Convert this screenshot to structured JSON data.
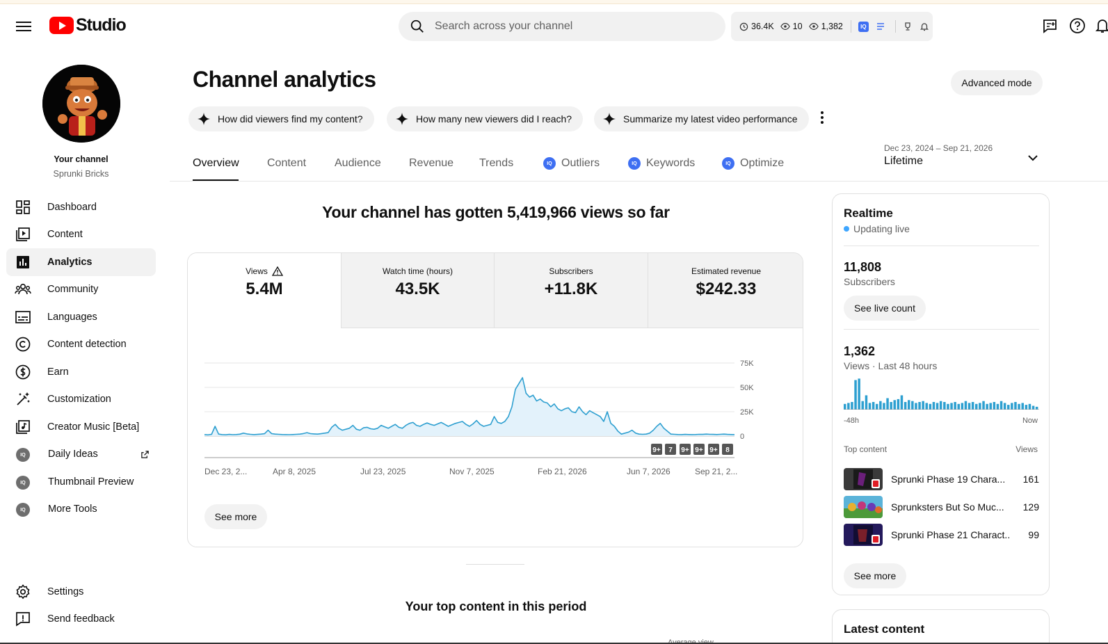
{
  "header": {
    "app_title": "Studio",
    "search_placeholder": "Search across your channel",
    "stat_watch": "36.4K",
    "stat_live": "10",
    "stat_views": "1,382"
  },
  "sidebar": {
    "your_channel_label": "Your channel",
    "channel_name": "Sprunki Bricks",
    "items": [
      {
        "label": "Dashboard",
        "icon": "dashboard-icon"
      },
      {
        "label": "Content",
        "icon": "content-icon"
      },
      {
        "label": "Analytics",
        "icon": "analytics-icon"
      },
      {
        "label": "Community",
        "icon": "community-icon"
      },
      {
        "label": "Languages",
        "icon": "subtitles-icon"
      },
      {
        "label": "Content detection",
        "icon": "copyright-icon"
      },
      {
        "label": "Earn",
        "icon": "dollar-icon"
      },
      {
        "label": "Customization",
        "icon": "magic-wand-icon"
      },
      {
        "label": "Creator Music [Beta]",
        "icon": "music-icon"
      },
      {
        "label": "Daily Ideas",
        "icon": "vidiq-icon"
      },
      {
        "label": "Thumbnail Preview",
        "icon": "vidiq-icon"
      },
      {
        "label": "More Tools",
        "icon": "vidiq-icon"
      }
    ],
    "settings_label": "Settings",
    "feedback_label": "Send feedback"
  },
  "main": {
    "title": "Channel analytics",
    "advanced_mode": "Advanced mode",
    "chips": [
      "How did viewers find my content?",
      "How many new viewers did I reach?",
      "Summarize my latest video performance"
    ],
    "tabs": [
      "Overview",
      "Content",
      "Audience",
      "Revenue",
      "Trends",
      "Outliers",
      "Keywords",
      "Optimize"
    ],
    "date_range": "Dec 23, 2024 – Sep 21, 2026",
    "date_label": "Lifetime",
    "headline": "Your channel has gotten 5,419,966 views so far",
    "metrics": [
      {
        "label": "Views",
        "value": "5.4M"
      },
      {
        "label": "Watch time (hours)",
        "value": "43.5K"
      },
      {
        "label": "Subscribers",
        "value": "+11.8K"
      },
      {
        "label": "Estimated revenue",
        "value": "$242.33"
      }
    ],
    "see_more": "See more",
    "top_content_title": "Your top content in this period",
    "avg_view_label": "Average view"
  },
  "chart_data": {
    "type": "area",
    "x_tick_labels": [
      "Dec 23, 2...",
      "Apr 8, 2025",
      "Jul 23, 2025",
      "Nov 7, 2025",
      "Feb 21, 2026",
      "Jun 7, 2026",
      "Sep 21, 2..."
    ],
    "y_tick_labels": [
      "75K",
      "50K",
      "25K",
      "0"
    ],
    "ylim": [
      0,
      75000
    ],
    "grid": true,
    "series": [
      {
        "color": "#2d9fd0",
        "values": [
          1500,
          1200,
          1800,
          10000,
          2000,
          1500,
          1300,
          1700,
          1400,
          1600,
          1900,
          3000,
          2200,
          1800,
          1500,
          1700,
          2000,
          2400,
          6000,
          2500,
          2000,
          1800,
          1600,
          1500,
          1400,
          1600,
          1800,
          2000,
          2600,
          3500,
          2500,
          2200,
          2000,
          2400,
          3000,
          3500,
          9000,
          12000,
          8000,
          6000,
          7000,
          8000,
          11000,
          7000,
          6000,
          8500,
          9000,
          7500,
          7000,
          8000,
          11000,
          9500,
          8000,
          10000,
          12000,
          9000,
          8000,
          11000,
          13000,
          14000,
          11000,
          10000,
          12000,
          13500,
          12000,
          11000,
          12500,
          14000,
          12000,
          10000,
          11500,
          13000,
          14000,
          15000,
          12000,
          10000,
          12500,
          16000,
          12000,
          10000,
          11000,
          12000,
          20000,
          14000,
          13000,
          15000,
          20000,
          30000,
          48000,
          54000,
          60000,
          44000,
          40000,
          42000,
          36000,
          38000,
          35000,
          34000,
          30000,
          33000,
          28000,
          26000,
          28000,
          29000,
          25000,
          24000,
          30000,
          25000,
          22000,
          26000,
          24000,
          22000,
          20000,
          15000,
          25000,
          13000,
          10000,
          5000,
          2000,
          3000,
          4000,
          6000,
          3000,
          2000,
          1800,
          2000,
          3000,
          6000,
          10000,
          13000,
          8000,
          5000,
          2000,
          1800,
          1600,
          1500,
          1700,
          1600,
          1500,
          1600,
          1800,
          1700,
          2000,
          1800,
          1700,
          1600,
          1800,
          2000,
          1700,
          1600,
          1500
        ]
      }
    ],
    "badges": [
      "9+",
      "7",
      "9+",
      "9+",
      "9+",
      "8"
    ]
  },
  "realtime": {
    "title": "Realtime",
    "live_label": "Updating live",
    "subs_value": "11,808",
    "subs_label": "Subscribers",
    "live_count_btn": "See live count",
    "views_value": "1,362",
    "views_label": "Views · Last 48 hours",
    "mini_bars": [
      12,
      14,
      16,
      62,
      65,
      18,
      30,
      14,
      16,
      12,
      18,
      14,
      24,
      16,
      20,
      22,
      30,
      16,
      20,
      18,
      14,
      16,
      18,
      14,
      12,
      16,
      14,
      18,
      16,
      12,
      14,
      16,
      12,
      14,
      18,
      14,
      16,
      12,
      14,
      18,
      12,
      14,
      16,
      12,
      18,
      14,
      10,
      14,
      16,
      12,
      14,
      10,
      12,
      8,
      6
    ],
    "axis_left": "-48h",
    "axis_right": "Now",
    "top_content_label": "Top content",
    "views_col_label": "Views",
    "top_content": [
      {
        "title": "Sprunki Phase 19 Chara...",
        "views": "161"
      },
      {
        "title": "Sprunksters But So Muc...",
        "views": "129"
      },
      {
        "title": "Sprunki Phase 21 Charact...",
        "views": "99"
      }
    ],
    "see_more": "See more"
  },
  "latest": {
    "title": "Latest content"
  },
  "colors": {
    "accent": "#2d9fd0",
    "live": "#3ea6ff",
    "brand": "#ff0000",
    "ext": "#3e6ff2"
  }
}
